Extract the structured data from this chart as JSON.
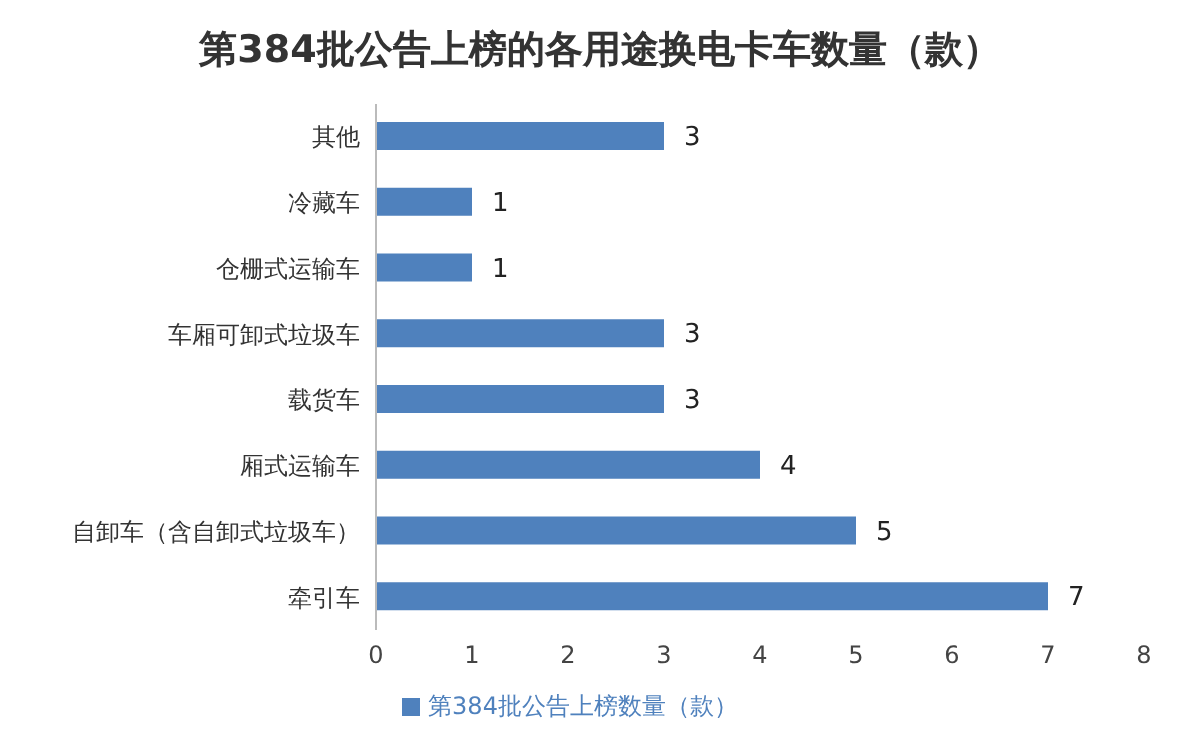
{
  "chart_data": {
    "type": "bar",
    "orientation": "horizontal",
    "title": "第384批公告上榜的各用途换电卡车数量（款）",
    "categories": [
      "其他",
      "冷藏车",
      "仓栅式运输车",
      "车厢可卸式垃圾车",
      "载货车",
      "厢式运输车",
      "自卸车（含自卸式垃圾车）",
      "牵引车"
    ],
    "series": [
      {
        "name": "第384批公告上榜数量（款）",
        "color": "#4f81bd",
        "values": [
          3,
          1,
          1,
          3,
          3,
          4,
          5,
          7
        ]
      }
    ],
    "xlim": [
      0,
      8
    ],
    "xticks": [
      0,
      1,
      2,
      3,
      4,
      5,
      6,
      7,
      8
    ],
    "grid": false,
    "legend": "bottom",
    "data_labels": true
  }
}
